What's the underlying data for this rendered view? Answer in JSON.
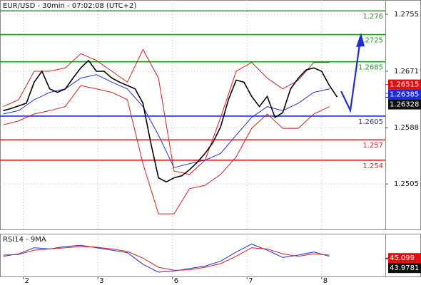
{
  "chart_data": [
    {
      "type": "line",
      "title": "EUR/USD - 30min - 07:02:08 (UTC+2)",
      "xlim": [
        0,
        248
      ],
      "xticks": [
        {
          "value": 15,
          "label": "2"
        },
        {
          "value": 63,
          "label": "3"
        },
        {
          "value": 111,
          "label": "6"
        },
        {
          "value": 159,
          "label": "7"
        },
        {
          "value": 207,
          "label": "8"
        }
      ],
      "ylim": [
        1.2438,
        1.2776
      ],
      "yticks": [
        1.2755,
        1.2671,
        1.2588,
        1.2505
      ],
      "grid": true,
      "series": [
        {
          "name": "Upper band",
          "color": "#d42020",
          "x": [
            2,
            12,
            22,
            32,
            42,
            52,
            62,
            72,
            82,
            92,
            102,
            112,
            122,
            132,
            142,
            152,
            162,
            172,
            182,
            192,
            202,
            212
          ],
          "values": [
            1.2619,
            1.2629,
            1.2671,
            1.2671,
            1.2676,
            1.2697,
            1.2687,
            1.2671,
            1.2655,
            1.2703,
            1.2661,
            1.2524,
            1.2519,
            1.254,
            1.2603,
            1.2671,
            1.2684,
            1.2661,
            1.2645,
            1.2658,
            1.2684,
            1.2684
          ]
        },
        {
          "name": "Lower band",
          "color": "#d42020",
          "x": [
            2,
            12,
            22,
            32,
            42,
            52,
            62,
            72,
            82,
            92,
            102,
            112,
            122,
            132,
            142,
            152,
            162,
            172,
            182,
            192,
            202,
            212
          ],
          "values": [
            1.2592,
            1.2598,
            1.2608,
            1.2613,
            1.2619,
            1.265,
            1.2645,
            1.264,
            1.2629,
            1.2535,
            1.2461,
            1.2461,
            1.2498,
            1.2503,
            1.2519,
            1.2545,
            1.2587,
            1.2608,
            1.2587,
            1.2587,
            1.2608,
            1.2619
          ]
        },
        {
          "name": "Middle",
          "color": "#2233cc",
          "x": [
            2,
            12,
            22,
            32,
            42,
            52,
            62,
            72,
            82,
            92,
            102,
            112,
            122,
            132,
            142,
            152,
            162,
            172,
            182,
            192,
            202,
            212
          ],
          "values": [
            1.2608,
            1.2613,
            1.2629,
            1.264,
            1.2645,
            1.2661,
            1.2666,
            1.2655,
            1.2645,
            1.2619,
            1.2577,
            1.2529,
            1.2535,
            1.254,
            1.255,
            1.2577,
            1.2603,
            1.2619,
            1.2613,
            1.2624,
            1.264,
            1.2645
          ]
        },
        {
          "name": "Price",
          "color": "#000000",
          "x": [
            2,
            7,
            12,
            17,
            22,
            27,
            32,
            37,
            42,
            47,
            52,
            57,
            62,
            67,
            72,
            77,
            82,
            87,
            92,
            97,
            102,
            107,
            112,
            117,
            122,
            127,
            132,
            137,
            142,
            147,
            152,
            157,
            162,
            167,
            172,
            177,
            182,
            187,
            192,
            197,
            202,
            207,
            212,
            217
          ],
          "values": [
            1.2613,
            1.2616,
            1.262,
            1.2624,
            1.2655,
            1.2671,
            1.2645,
            1.264,
            1.2645,
            1.2661,
            1.2676,
            1.2687,
            1.2671,
            1.2671,
            1.2661,
            1.2655,
            1.265,
            1.2645,
            1.2624,
            1.2566,
            1.2514,
            1.2508,
            1.2514,
            1.2517,
            1.2526,
            1.2537,
            1.255,
            1.2566,
            1.2589,
            1.2629,
            1.2658,
            1.2655,
            1.2634,
            1.2619,
            1.2634,
            1.2603,
            1.261,
            1.2645,
            1.2661,
            1.2673,
            1.2676,
            1.2671,
            1.265,
            1.2633
          ]
        }
      ],
      "levels": [
        {
          "value": 1.276,
          "color": "#1f9a1f"
        },
        {
          "value": 1.2725,
          "color": "#1f9a1f"
        },
        {
          "value": 1.2685,
          "color": "#1f9a1f"
        },
        {
          "value": 1.2605,
          "color": "#1d2ed6"
        },
        {
          "value": 1.257,
          "color": "#d42020"
        },
        {
          "value": 1.254,
          "color": "#d42020"
        }
      ],
      "price_markers": [
        {
          "value": 1.26515,
          "color": "#e01010"
        },
        {
          "value": 1.26385,
          "color": "#1d2ed6"
        },
        {
          "value": 1.26328,
          "color": "#111111"
        }
      ]
    },
    {
      "type": "line",
      "title": "RSI14 - 9MA",
      "xlim": [
        0,
        248
      ],
      "ylim": [
        15,
        85
      ],
      "series": [
        {
          "name": "RSI14",
          "color": "#1d2ed6",
          "x": [
            2,
            12,
            22,
            32,
            42,
            52,
            62,
            72,
            82,
            92,
            102,
            112,
            122,
            132,
            142,
            152,
            162,
            172,
            182,
            192,
            202,
            212
          ],
          "values": [
            48,
            52,
            62,
            60,
            64,
            66,
            62,
            58,
            54,
            35,
            22,
            24,
            28,
            32,
            40,
            55,
            68,
            58,
            46,
            50,
            55,
            48
          ]
        },
        {
          "name": "9MA",
          "color": "#d42020",
          "x": [
            2,
            12,
            22,
            32,
            42,
            52,
            62,
            72,
            82,
            92,
            102,
            112,
            122,
            132,
            142,
            152,
            162,
            172,
            182,
            192,
            202,
            212
          ],
          "values": [
            50,
            51,
            58,
            60,
            62,
            64,
            63,
            60,
            56,
            45,
            30,
            25,
            26,
            30,
            36,
            48,
            62,
            60,
            52,
            48,
            52,
            50
          ]
        }
      ],
      "price_markers": [
        {
          "value": 45.099,
          "color": "#e01010"
        },
        {
          "value": 43.9781,
          "color": "#111111"
        }
      ]
    }
  ]
}
